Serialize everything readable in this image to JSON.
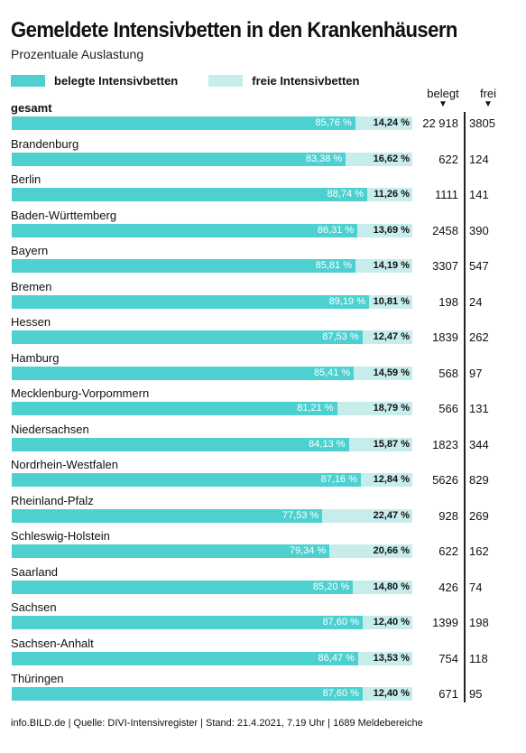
{
  "title": "Gemeldete Intensivbetten in den Krankenhäusern",
  "subtitle": "Prozentuale Auslastung",
  "legend": [
    {
      "label": "belegte Intensivbetten",
      "color": "#4fd0d0"
    },
    {
      "label": "freie Intensivbetten",
      "color": "#c7ecec"
    }
  ],
  "columns": {
    "occupied_header": "belegt",
    "free_header": "frei",
    "arrow": "▼"
  },
  "footer": "info.BILD.de | Quelle: DIVI-Intensivregister | Stand: 21.4.2021, 7.19 Uhr | 1689 Meldebereiche",
  "chart_data": {
    "type": "bar",
    "stacked": true,
    "orientation": "horizontal",
    "xlim": [
      0,
      100
    ],
    "series": [
      {
        "name": "belegte Intensivbetten",
        "color": "#4fd0d0"
      },
      {
        "name": "freie Intensivbetten",
        "color": "#c7ecec"
      }
    ],
    "rows": [
      {
        "label": "gesamt",
        "bold": true,
        "occupied_pct": 85.76,
        "free_pct": 14.24,
        "occupied_label": "85,76 %",
        "free_label": "14,24 %",
        "occupied": "22 918",
        "free": "3805"
      },
      {
        "label": "Brandenburg",
        "occupied_pct": 83.38,
        "free_pct": 16.62,
        "occupied_label": "83,38 %",
        "free_label": "16,62 %",
        "occupied": "622",
        "free": "124"
      },
      {
        "label": "Berlin",
        "occupied_pct": 88.74,
        "free_pct": 11.26,
        "occupied_label": "88,74 %",
        "free_label": "11,26 %",
        "occupied": "1111",
        "free": "141"
      },
      {
        "label": "Baden-Württemberg",
        "occupied_pct": 86.31,
        "free_pct": 13.69,
        "occupied_label": "86,31 %",
        "free_label": "13,69 %",
        "occupied": "2458",
        "free": "390"
      },
      {
        "label": "Bayern",
        "occupied_pct": 85.81,
        "free_pct": 14.19,
        "occupied_label": "85,81 %",
        "free_label": "14,19 %",
        "occupied": "3307",
        "free": "547"
      },
      {
        "label": "Bremen",
        "occupied_pct": 89.19,
        "free_pct": 10.81,
        "occupied_label": "89,19 %",
        "free_label": "10,81 %",
        "occupied": "198",
        "free": "24"
      },
      {
        "label": "Hessen",
        "occupied_pct": 87.53,
        "free_pct": 12.47,
        "occupied_label": "87,53 %",
        "free_label": "12,47 %",
        "occupied": "1839",
        "free": "262"
      },
      {
        "label": "Hamburg",
        "occupied_pct": 85.41,
        "free_pct": 14.59,
        "occupied_label": "85,41 %",
        "free_label": "14,59 %",
        "occupied": "568",
        "free": "97"
      },
      {
        "label": "Mecklenburg-Vorpommern",
        "occupied_pct": 81.21,
        "free_pct": 18.79,
        "occupied_label": "81,21 %",
        "free_label": "18,79 %",
        "occupied": "566",
        "free": "131"
      },
      {
        "label": "Niedersachsen",
        "occupied_pct": 84.13,
        "free_pct": 15.87,
        "occupied_label": "84,13 %",
        "free_label": "15,87 %",
        "occupied": "1823",
        "free": "344"
      },
      {
        "label": "Nordrhein-Westfalen",
        "occupied_pct": 87.16,
        "free_pct": 12.84,
        "occupied_label": "87,16 %",
        "free_label": "12,84 %",
        "occupied": "5626",
        "free": "829"
      },
      {
        "label": "Rheinland-Pfalz",
        "occupied_pct": 77.53,
        "free_pct": 22.47,
        "occupied_label": "77,53 %",
        "free_label": "22,47 %",
        "occupied": "928",
        "free": "269"
      },
      {
        "label": "Schleswig-Holstein",
        "occupied_pct": 79.34,
        "free_pct": 20.66,
        "occupied_label": "79,34 %",
        "free_label": "20,66 %",
        "occupied": "622",
        "free": "162"
      },
      {
        "label": "Saarland",
        "occupied_pct": 85.2,
        "free_pct": 14.8,
        "occupied_label": "85,20 %",
        "free_label": "14,80 %",
        "occupied": "426",
        "free": "74"
      },
      {
        "label": "Sachsen",
        "occupied_pct": 87.6,
        "free_pct": 12.4,
        "occupied_label": "87,60 %",
        "free_label": "12,40 %",
        "occupied": "1399",
        "free": "198"
      },
      {
        "label": "Sachsen-Anhalt",
        "occupied_pct": 86.47,
        "free_pct": 13.53,
        "occupied_label": "86,47 %",
        "free_label": "13,53 %",
        "occupied": "754",
        "free": "118"
      },
      {
        "label": "Thüringen",
        "occupied_pct": 87.6,
        "free_pct": 12.4,
        "occupied_label": "87,60 %",
        "free_label": "12,40 %",
        "occupied": "671",
        "free": "95"
      }
    ]
  }
}
